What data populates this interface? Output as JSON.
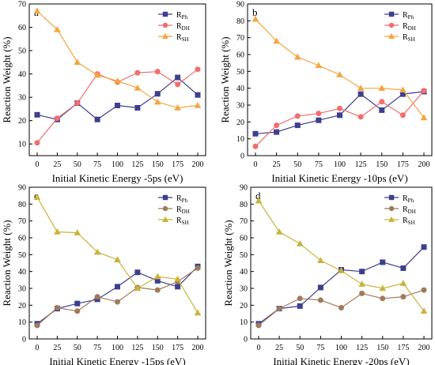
{
  "chart_data": [
    {
      "type": "line",
      "panel_label": "a",
      "x": [
        0,
        25,
        50,
        75,
        100,
        125,
        150,
        175,
        200
      ],
      "xticks": [
        "0",
        "25",
        "50",
        "75",
        "100",
        "125",
        "150",
        "175",
        "200"
      ],
      "xlabel": "Initial Kinetic Energy -5ps (eV)",
      "ylabel": "Reaction Weight (%)",
      "ylim": [
        5,
        70
      ],
      "yticks": [
        "10",
        "20",
        "30",
        "40",
        "50",
        "60",
        "70"
      ],
      "legend_position": "top-right",
      "series": [
        {
          "name": "R",
          "sub": "Ph",
          "marker": "square",
          "color": "#3f3f8f",
          "values": [
            22.5,
            20.5,
            27.5,
            20.5,
            26.5,
            25.5,
            31.5,
            38.5,
            31
          ]
        },
        {
          "name": "R",
          "sub": "DH",
          "marker": "circle",
          "color": "#f26d6d",
          "values": [
            10.5,
            21,
            27.5,
            40,
            36.5,
            40.5,
            41,
            35.5,
            42
          ]
        },
        {
          "name": "R",
          "sub": "SH",
          "marker": "triangle",
          "color": "#f5a540",
          "values": [
            67,
            59,
            45,
            39.5,
            37,
            34,
            28,
            25.5,
            26.5
          ]
        }
      ]
    },
    {
      "type": "line",
      "panel_label": "b",
      "x": [
        0,
        25,
        50,
        75,
        100,
        125,
        150,
        175,
        200
      ],
      "xticks": [
        "0",
        "25",
        "50",
        "75",
        "100",
        "125",
        "150",
        "175",
        "200"
      ],
      "xlabel": "Initial Kinetic Energy -10ps (eV)",
      "ylabel": "Reaction Weight (%)",
      "ylim": [
        0,
        90
      ],
      "yticks": [
        "0",
        "10",
        "20",
        "30",
        "40",
        "50",
        "60",
        "70",
        "80",
        "90"
      ],
      "legend_position": "top-right",
      "series": [
        {
          "name": "R",
          "sub": "Ph",
          "marker": "square",
          "color": "#3f3f8f",
          "values": [
            13,
            14,
            18,
            21,
            24,
            36.5,
            27,
            36.5,
            38
          ]
        },
        {
          "name": "R",
          "sub": "DH",
          "marker": "circle",
          "color": "#f26d6d",
          "values": [
            5.5,
            18,
            23.5,
            25,
            28,
            23,
            32,
            24,
            38.5
          ]
        },
        {
          "name": "R",
          "sub": "SH",
          "marker": "triangle",
          "color": "#f5a540",
          "values": [
            81,
            68,
            58.5,
            53.5,
            48,
            40,
            40,
            39,
            22.5
          ]
        }
      ]
    },
    {
      "type": "line",
      "panel_label": "c",
      "x": [
        0,
        25,
        50,
        75,
        100,
        125,
        150,
        175,
        200
      ],
      "xticks": [
        "0",
        "25",
        "50",
        "75",
        "100",
        "125",
        "150",
        "175",
        "200"
      ],
      "xlabel": "Initial Kinetic Energy -15ps (eV)",
      "ylabel": "Reaction Weight (%)",
      "ylim": [
        0,
        90
      ],
      "yticks": [
        "0",
        "10",
        "20",
        "30",
        "40",
        "50",
        "60",
        "70",
        "80",
        "90"
      ],
      "legend_position": "top-right",
      "series": [
        {
          "name": "R",
          "sub": "Ph",
          "marker": "square",
          "color": "#3f3f8f",
          "values": [
            9,
            18,
            21,
            23.5,
            31,
            39.5,
            34.5,
            31,
            43
          ]
        },
        {
          "name": "R",
          "sub": "DH",
          "marker": "circle",
          "color": "#a07a5a",
          "values": [
            8,
            18.5,
            16.5,
            25,
            22,
            30.5,
            29,
            34,
            42
          ]
        },
        {
          "name": "R",
          "sub": "SH",
          "marker": "triangle",
          "color": "#c9b33a",
          "values": [
            84,
            63.5,
            63,
            51.5,
            47,
            30,
            37,
            35.5,
            15.5
          ]
        }
      ]
    },
    {
      "type": "line",
      "panel_label": "d",
      "x": [
        0,
        25,
        50,
        75,
        100,
        125,
        150,
        175,
        200
      ],
      "xticks": [
        "0",
        "25",
        "50",
        "75",
        "100",
        "125",
        "150",
        "175",
        "200"
      ],
      "xlabel": "Initial Kinetic Energy -20ps (eV)",
      "ylabel": "Reaction Weight (%)",
      "ylim": [
        0,
        90
      ],
      "yticks": [
        "0",
        "10",
        "20",
        "30",
        "40",
        "50",
        "60",
        "70",
        "80",
        "90"
      ],
      "legend_position": "top-right",
      "series": [
        {
          "name": "R",
          "sub": "Ph",
          "marker": "square",
          "color": "#3f3f8f",
          "values": [
            9,
            18,
            19.5,
            30.5,
            41,
            40,
            45.5,
            42,
            54.5
          ]
        },
        {
          "name": "R",
          "sub": "DH",
          "marker": "circle",
          "color": "#a07a5a",
          "values": [
            8,
            18,
            24,
            23,
            18.5,
            27,
            24,
            25,
            29
          ]
        },
        {
          "name": "R",
          "sub": "SH",
          "marker": "triangle",
          "color": "#c9b33a",
          "values": [
            82,
            63.5,
            56.5,
            46.5,
            40.5,
            32.5,
            30,
            33,
            16.5
          ]
        }
      ]
    }
  ]
}
